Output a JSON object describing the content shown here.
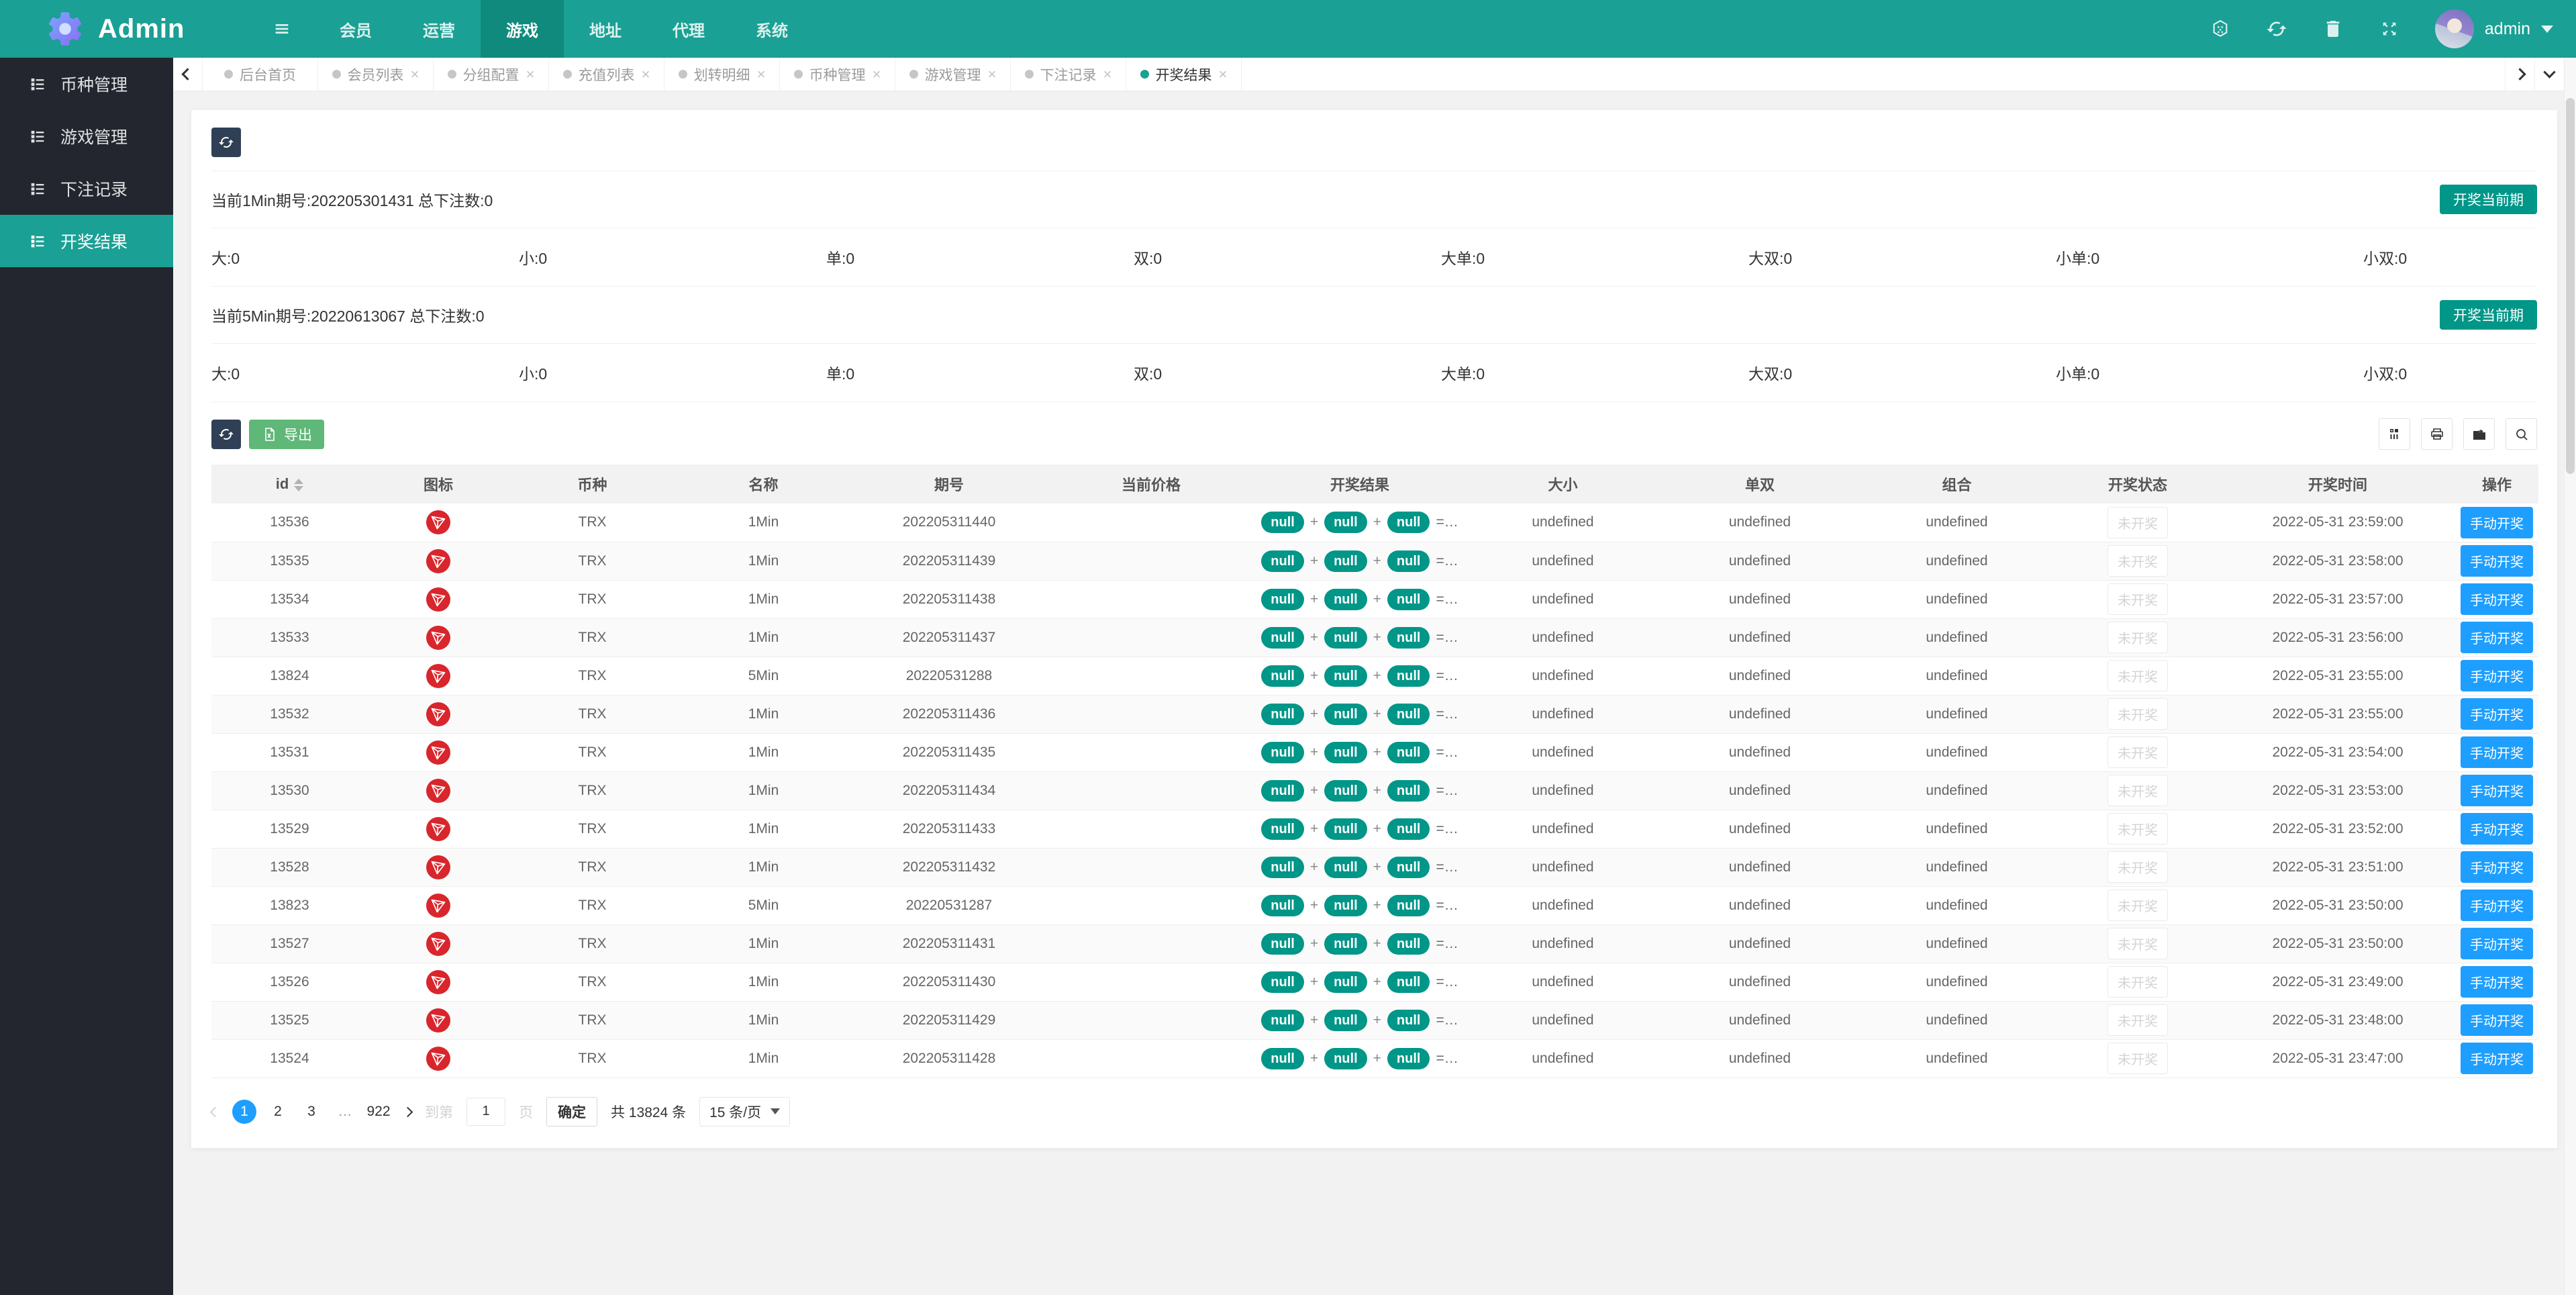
{
  "colors": {
    "header_teal": "#1aa094",
    "active_nav_teal": "#0f8a7d",
    "sidebar_dark": "#23262e",
    "pill_teal": "#009688",
    "button_dark": "#2F4056",
    "export_green": "#5FB878",
    "action_blue": "#1E9FFF",
    "trx_red": "#d8262c"
  },
  "navbar": {
    "brand": "Admin",
    "items": [
      {
        "label": "会员",
        "active": false
      },
      {
        "label": "运营",
        "active": false
      },
      {
        "label": "游戏",
        "active": true
      },
      {
        "label": "地址",
        "active": false
      },
      {
        "label": "代理",
        "active": false
      },
      {
        "label": "系统",
        "active": false
      }
    ],
    "right_icons": [
      "hexagon-icon",
      "refresh-icon",
      "trash-icon",
      "fullscreen-icon"
    ],
    "user": "admin"
  },
  "sidebar": {
    "items": [
      {
        "label": "币种管理",
        "active": false
      },
      {
        "label": "游戏管理",
        "active": false
      },
      {
        "label": "下注记录",
        "active": false
      },
      {
        "label": "开奖结果",
        "active": true
      }
    ]
  },
  "tabs": [
    {
      "label": "后台首页",
      "closable": false,
      "active": false
    },
    {
      "label": "会员列表",
      "closable": true,
      "active": false
    },
    {
      "label": "分组配置",
      "closable": true,
      "active": false
    },
    {
      "label": "充值列表",
      "closable": true,
      "active": false
    },
    {
      "label": "划转明细",
      "closable": true,
      "active": false
    },
    {
      "label": "币种管理",
      "closable": true,
      "active": false
    },
    {
      "label": "游戏管理",
      "closable": true,
      "active": false
    },
    {
      "label": "下注记录",
      "closable": true,
      "active": false
    },
    {
      "label": "开奖结果",
      "closable": true,
      "active": true
    }
  ],
  "panel": {
    "groups": [
      {
        "title": "当前1Min期号:202205301431 总下注数:0",
        "action": "开奖当前期",
        "stats": [
          {
            "label": "大",
            "value": "0"
          },
          {
            "label": "小",
            "value": "0"
          },
          {
            "label": "单",
            "value": "0"
          },
          {
            "label": "双",
            "value": "0"
          },
          {
            "label": "大单",
            "value": "0"
          },
          {
            "label": "大双",
            "value": "0"
          },
          {
            "label": "小单",
            "value": "0"
          },
          {
            "label": "小双",
            "value": "0"
          }
        ]
      },
      {
        "title": "当前5Min期号:20220613067 总下注数:0",
        "action": "开奖当前期",
        "stats": [
          {
            "label": "大",
            "value": "0"
          },
          {
            "label": "小",
            "value": "0"
          },
          {
            "label": "单",
            "value": "0"
          },
          {
            "label": "双",
            "value": "0"
          },
          {
            "label": "大单",
            "value": "0"
          },
          {
            "label": "大双",
            "value": "0"
          },
          {
            "label": "小单",
            "value": "0"
          },
          {
            "label": "小双",
            "value": "0"
          }
        ]
      }
    ],
    "toolbar": {
      "export_label": "导出"
    },
    "table": {
      "columns": [
        "id",
        "图标",
        "币种",
        "名称",
        "期号",
        "当前价格",
        "开奖结果",
        "大小",
        "单双",
        "组合",
        "开奖状态",
        "开奖时间",
        "操作"
      ],
      "result_pills": [
        "null",
        "null",
        "null"
      ],
      "result_suffix": "=…",
      "status_label": "未开奖",
      "action_label": "手动开奖",
      "rows": [
        {
          "id": "13536",
          "coin": "TRX",
          "name": "1Min",
          "issue": "202205311440",
          "price": "",
          "size": "undefined",
          "odd_even": "undefined",
          "combo": "undefined",
          "time": "2022-05-31 23:59:00"
        },
        {
          "id": "13535",
          "coin": "TRX",
          "name": "1Min",
          "issue": "202205311439",
          "price": "",
          "size": "undefined",
          "odd_even": "undefined",
          "combo": "undefined",
          "time": "2022-05-31 23:58:00"
        },
        {
          "id": "13534",
          "coin": "TRX",
          "name": "1Min",
          "issue": "202205311438",
          "price": "",
          "size": "undefined",
          "odd_even": "undefined",
          "combo": "undefined",
          "time": "2022-05-31 23:57:00"
        },
        {
          "id": "13533",
          "coin": "TRX",
          "name": "1Min",
          "issue": "202205311437",
          "price": "",
          "size": "undefined",
          "odd_even": "undefined",
          "combo": "undefined",
          "time": "2022-05-31 23:56:00"
        },
        {
          "id": "13824",
          "coin": "TRX",
          "name": "5Min",
          "issue": "20220531288",
          "price": "",
          "size": "undefined",
          "odd_even": "undefined",
          "combo": "undefined",
          "time": "2022-05-31 23:55:00"
        },
        {
          "id": "13532",
          "coin": "TRX",
          "name": "1Min",
          "issue": "202205311436",
          "price": "",
          "size": "undefined",
          "odd_even": "undefined",
          "combo": "undefined",
          "time": "2022-05-31 23:55:00"
        },
        {
          "id": "13531",
          "coin": "TRX",
          "name": "1Min",
          "issue": "202205311435",
          "price": "",
          "size": "undefined",
          "odd_even": "undefined",
          "combo": "undefined",
          "time": "2022-05-31 23:54:00"
        },
        {
          "id": "13530",
          "coin": "TRX",
          "name": "1Min",
          "issue": "202205311434",
          "price": "",
          "size": "undefined",
          "odd_even": "undefined",
          "combo": "undefined",
          "time": "2022-05-31 23:53:00"
        },
        {
          "id": "13529",
          "coin": "TRX",
          "name": "1Min",
          "issue": "202205311433",
          "price": "",
          "size": "undefined",
          "odd_even": "undefined",
          "combo": "undefined",
          "time": "2022-05-31 23:52:00"
        },
        {
          "id": "13528",
          "coin": "TRX",
          "name": "1Min",
          "issue": "202205311432",
          "price": "",
          "size": "undefined",
          "odd_even": "undefined",
          "combo": "undefined",
          "time": "2022-05-31 23:51:00"
        },
        {
          "id": "13823",
          "coin": "TRX",
          "name": "5Min",
          "issue": "20220531287",
          "price": "",
          "size": "undefined",
          "odd_even": "undefined",
          "combo": "undefined",
          "time": "2022-05-31 23:50:00"
        },
        {
          "id": "13527",
          "coin": "TRX",
          "name": "1Min",
          "issue": "202205311431",
          "price": "",
          "size": "undefined",
          "odd_even": "undefined",
          "combo": "undefined",
          "time": "2022-05-31 23:50:00"
        },
        {
          "id": "13526",
          "coin": "TRX",
          "name": "1Min",
          "issue": "202205311430",
          "price": "",
          "size": "undefined",
          "odd_even": "undefined",
          "combo": "undefined",
          "time": "2022-05-31 23:49:00"
        },
        {
          "id": "13525",
          "coin": "TRX",
          "name": "1Min",
          "issue": "202205311429",
          "price": "",
          "size": "undefined",
          "odd_even": "undefined",
          "combo": "undefined",
          "time": "2022-05-31 23:48:00"
        },
        {
          "id": "13524",
          "coin": "TRX",
          "name": "1Min",
          "issue": "202205311428",
          "price": "",
          "size": "undefined",
          "odd_even": "undefined",
          "combo": "undefined",
          "time": "2022-05-31 23:47:00"
        }
      ]
    },
    "pagination": {
      "pages": [
        "1",
        "2",
        "3",
        "…",
        "922"
      ],
      "active_page": "1",
      "goto_label": "到第",
      "goto_value": "1",
      "page_word": "页",
      "confirm_label": "确定",
      "total_label": "共 13824 条",
      "page_size_label": "15 条/页"
    }
  }
}
